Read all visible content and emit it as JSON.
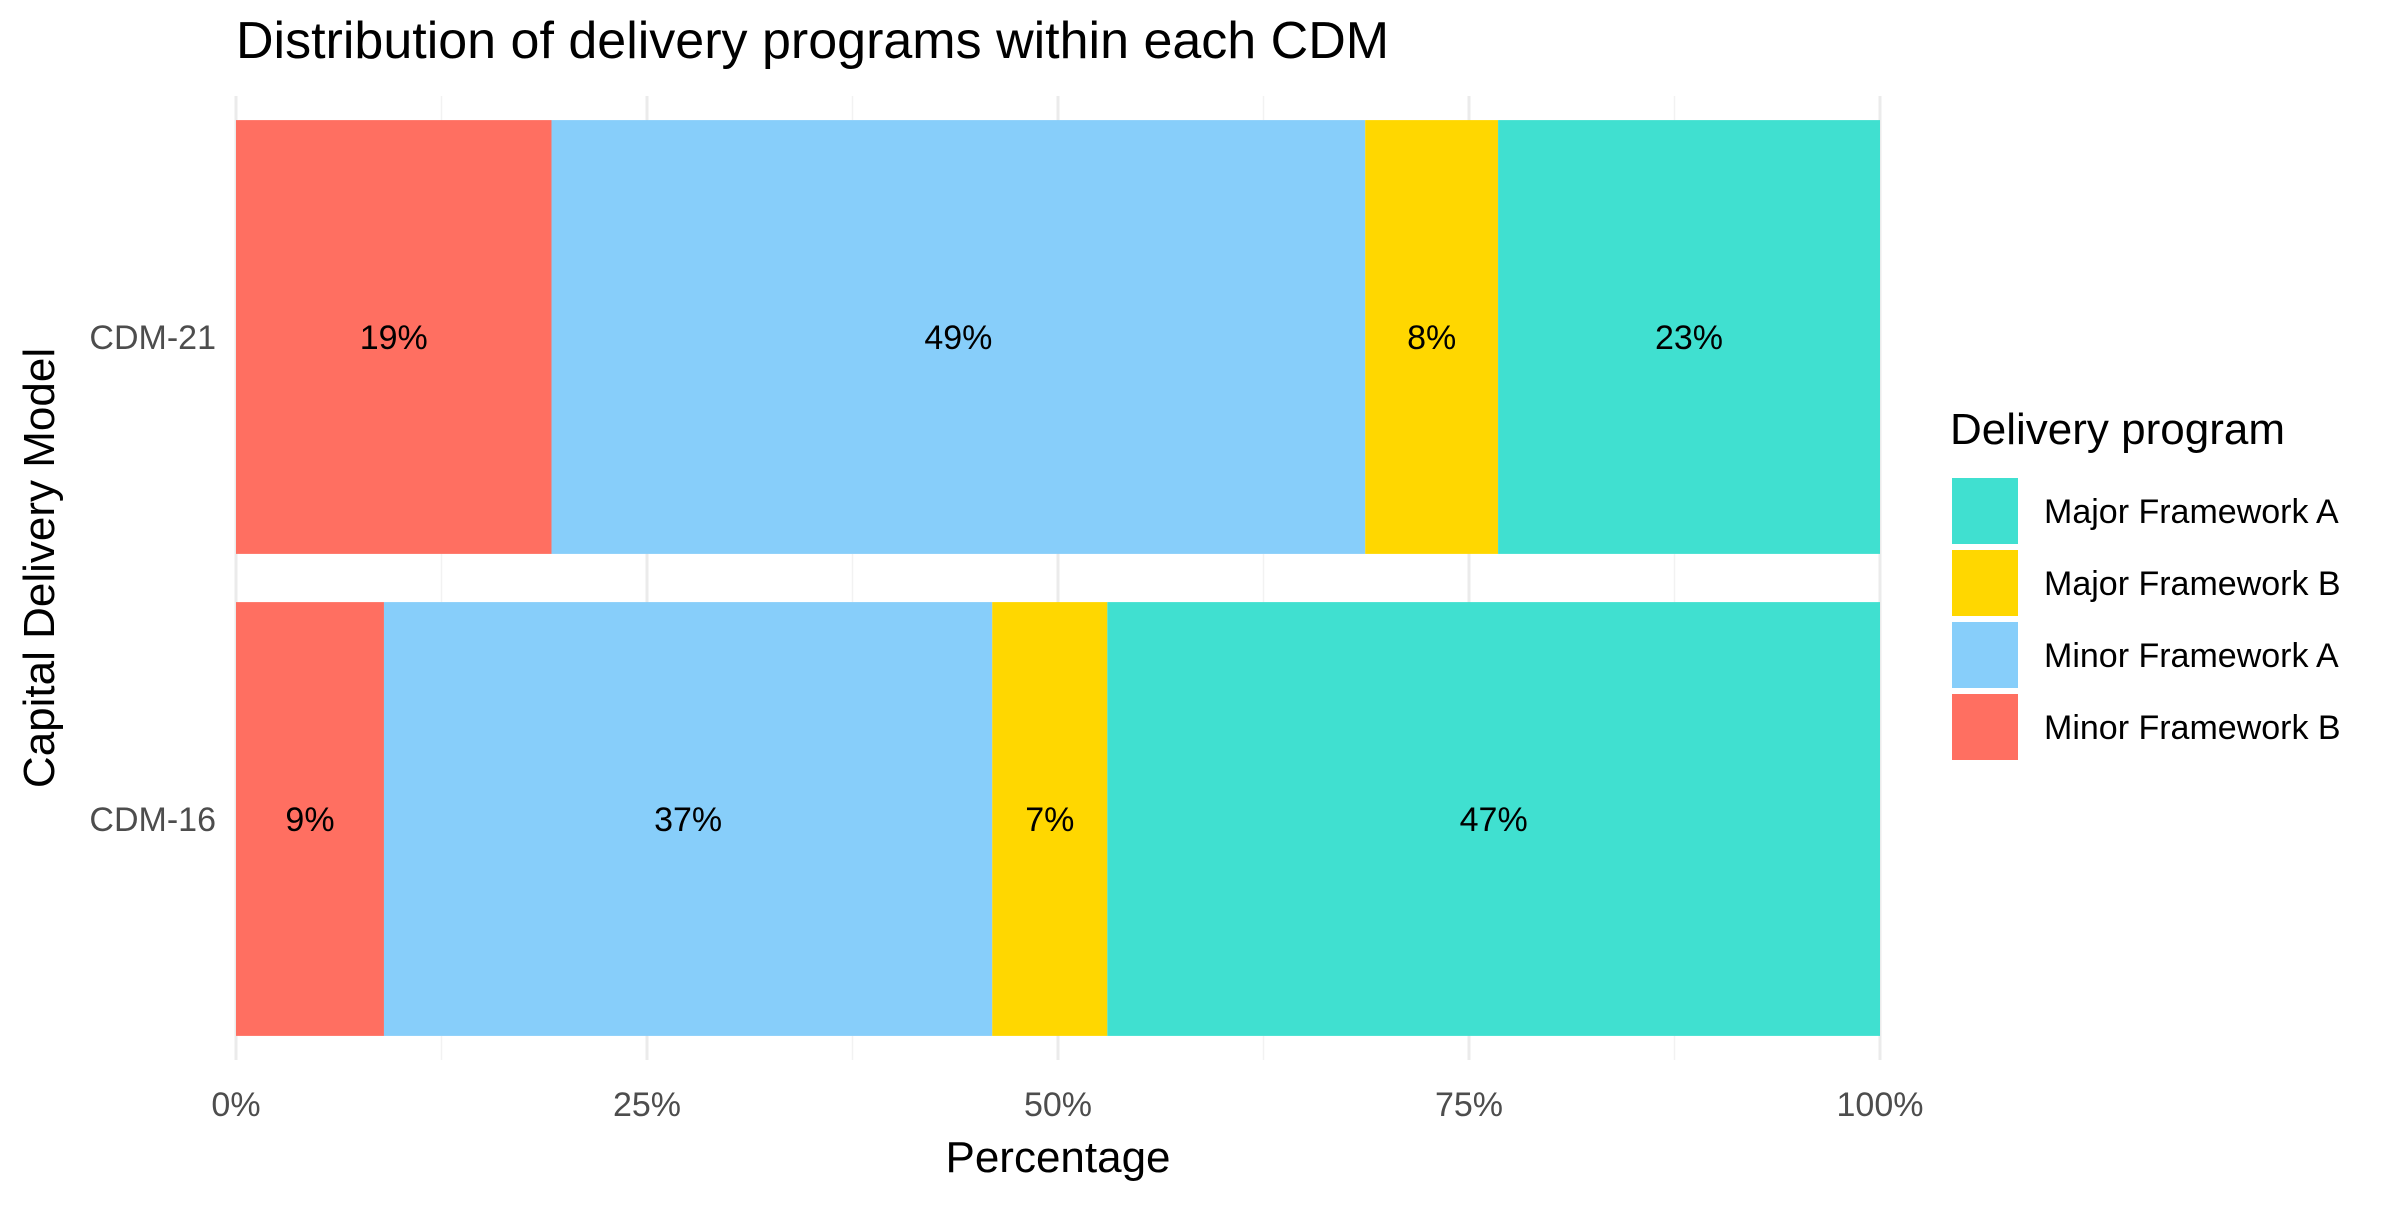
{
  "chart_data": {
    "type": "bar",
    "orientation": "horizontal",
    "stacked": "percent",
    "title": "Distribution of delivery programs within each CDM",
    "xlabel": "Percentage",
    "ylabel": "Capital Delivery Model",
    "xlim": [
      0,
      100
    ],
    "x_ticks": [
      "0%",
      "25%",
      "50%",
      "75%",
      "100%"
    ],
    "x_tick_values": [
      0,
      25,
      50,
      75,
      100
    ],
    "categories": [
      "CDM-21",
      "CDM-16"
    ],
    "series": [
      {
        "name": "Minor Framework B",
        "color": "#FF6F61",
        "values": [
          19,
          9
        ],
        "labels": [
          "19%",
          "9%"
        ]
      },
      {
        "name": "Minor Framework A",
        "color": "#87CEFA",
        "values": [
          49,
          37
        ],
        "labels": [
          "49%",
          "37%"
        ]
      },
      {
        "name": "Major Framework B",
        "color": "#FFD700",
        "values": [
          8,
          7
        ],
        "labels": [
          "8%",
          "7%"
        ]
      },
      {
        "name": "Major Framework A",
        "color": "#40E0D0",
        "values": [
          23,
          47
        ],
        "labels": [
          "23%",
          "47%"
        ]
      }
    ],
    "legend": {
      "title": "Delivery program",
      "position": "right",
      "order": [
        "Major Framework A",
        "Major Framework B",
        "Minor Framework A",
        "Minor Framework B"
      ]
    },
    "grid": true
  }
}
